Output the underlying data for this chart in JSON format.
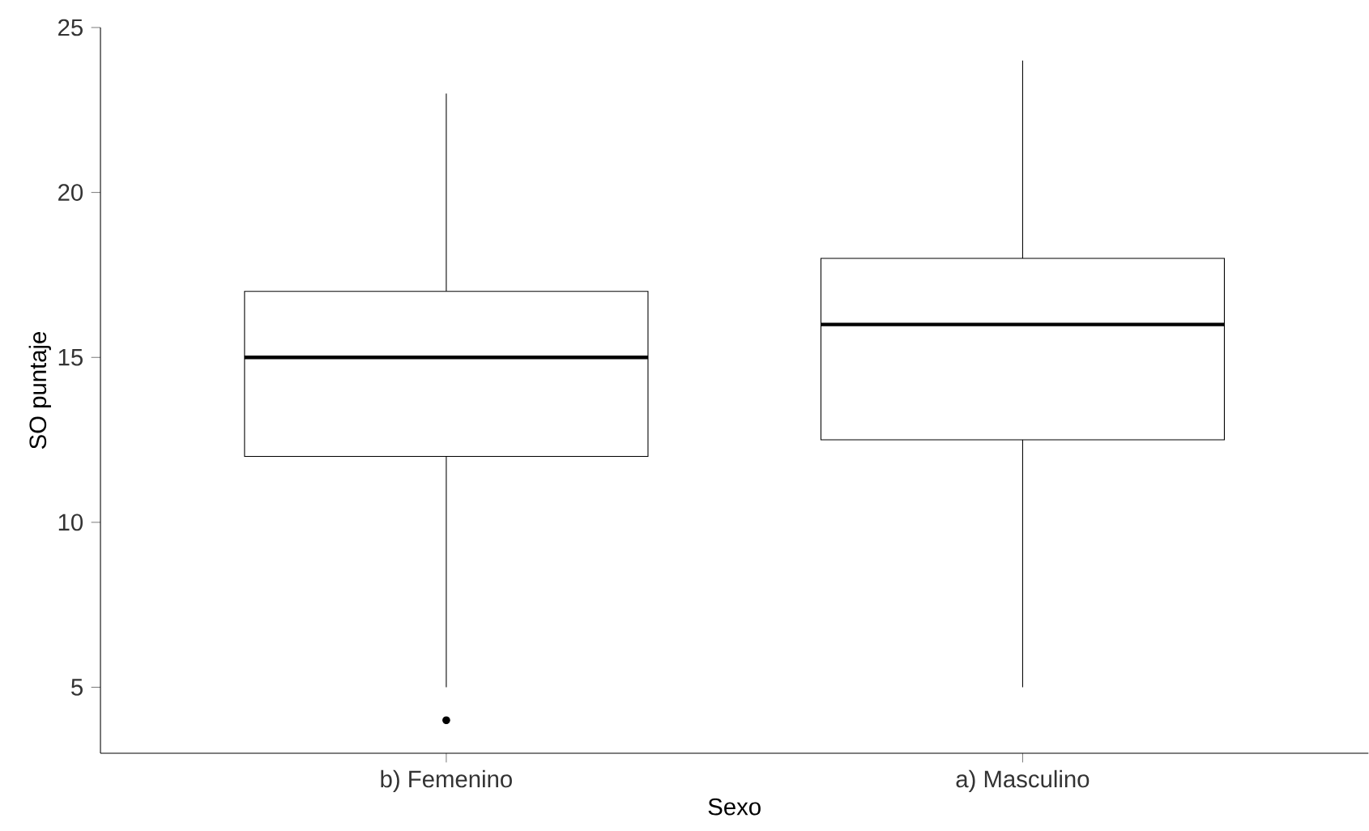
{
  "chart_data": {
    "type": "box",
    "xlabel": "Sexo",
    "ylabel": "SO puntaje",
    "categories": [
      "b) Femenino",
      "a) Masculino"
    ],
    "boxes": [
      {
        "low": 5,
        "q1": 12,
        "median": 15,
        "q3": 17,
        "high": 23,
        "outliers": [
          4
        ]
      },
      {
        "low": 5,
        "q1": 12.5,
        "median": 16,
        "q3": 18,
        "high": 24
      }
    ],
    "ylim": [
      3,
      25
    ],
    "yticks": [
      5,
      10,
      15,
      20,
      25
    ],
    "grid": false
  }
}
